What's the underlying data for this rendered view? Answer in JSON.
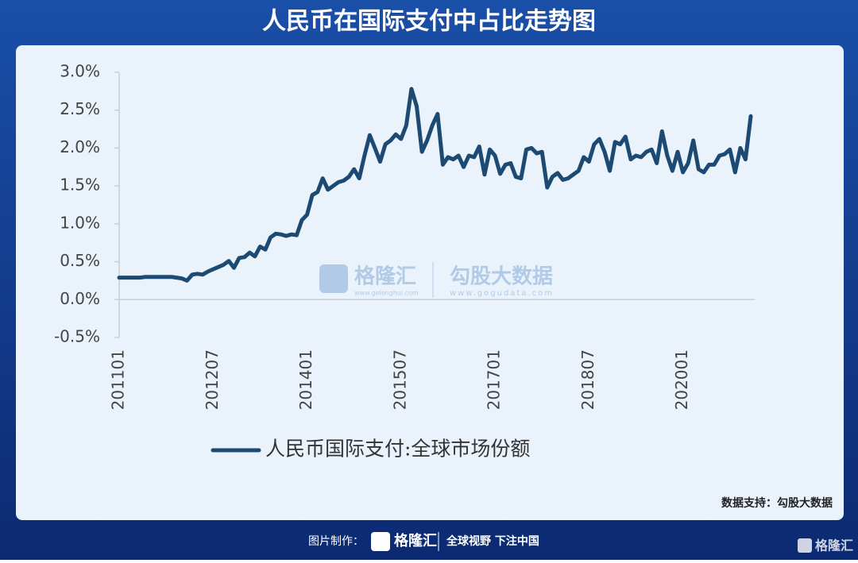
{
  "title": "人民币在国际支付中占比走势图",
  "chart_data": {
    "type": "line",
    "categories": [
      "201101",
      null,
      null,
      null,
      null,
      null,
      null,
      null,
      null,
      null,
      null,
      null,
      null,
      null,
      null,
      null,
      null,
      null,
      "201207",
      null,
      null,
      null,
      null,
      null,
      null,
      null,
      null,
      null,
      null,
      null,
      null,
      null,
      null,
      null,
      null,
      null,
      "201401",
      null,
      null,
      null,
      null,
      null,
      null,
      null,
      null,
      null,
      null,
      null,
      null,
      null,
      null,
      null,
      null,
      null,
      "201507",
      null,
      null,
      null,
      null,
      null,
      null,
      null,
      null,
      null,
      null,
      null,
      null,
      null,
      null,
      null,
      null,
      null,
      "201701",
      null,
      null,
      null,
      null,
      null,
      null,
      null,
      null,
      null,
      null,
      null,
      null,
      null,
      null,
      null,
      null,
      null,
      "201807",
      null,
      null,
      null,
      null,
      null,
      null,
      null,
      null,
      null,
      null,
      null,
      null,
      null,
      null,
      null,
      null,
      null,
      "202001",
      null,
      null,
      null,
      null,
      null,
      null,
      null,
      null,
      null,
      null,
      null,
      null,
      null
    ],
    "series": [
      {
        "name": "人民币国际支付:全球市场份额",
        "color": "#1d4a72",
        "values": [
          0.29,
          0.29,
          0.29,
          0.29,
          0.29,
          0.3,
          0.3,
          0.3,
          0.3,
          0.3,
          0.3,
          0.29,
          0.28,
          0.25,
          0.33,
          0.34,
          0.33,
          0.37,
          0.4,
          0.43,
          0.46,
          0.51,
          0.42,
          0.55,
          0.56,
          0.62,
          0.57,
          0.7,
          0.66,
          0.82,
          0.87,
          0.86,
          0.84,
          0.86,
          0.85,
          1.05,
          1.12,
          1.38,
          1.42,
          1.6,
          1.45,
          1.5,
          1.55,
          1.57,
          1.62,
          1.72,
          1.6,
          1.9,
          2.17,
          2.0,
          1.82,
          2.05,
          2.1,
          2.18,
          2.12,
          2.3,
          2.78,
          2.55,
          1.95,
          2.1,
          2.3,
          2.45,
          1.78,
          1.88,
          1.85,
          1.9,
          1.75,
          1.9,
          1.88,
          2.02,
          1.65,
          1.98,
          1.9,
          1.66,
          1.78,
          1.8,
          1.62,
          1.6,
          1.98,
          2.0,
          1.93,
          1.95,
          1.48,
          1.62,
          1.67,
          1.58,
          1.6,
          1.65,
          1.7,
          1.88,
          1.82,
          2.05,
          2.12,
          1.95,
          1.7,
          2.08,
          2.05,
          2.15,
          1.85,
          1.9,
          1.88,
          1.95,
          1.98,
          1.8,
          2.22,
          1.9,
          1.7,
          1.95,
          1.68,
          1.8,
          2.1,
          1.72,
          1.68,
          1.78,
          1.78,
          1.9,
          1.92,
          1.98,
          1.68,
          2.0,
          1.85,
          2.42
        ]
      }
    ],
    "ylim": [
      -0.5,
      3.0
    ],
    "yticks": [
      {
        "value": -0.5,
        "label": "-0.5%"
      },
      {
        "value": 0,
        "label": "0.0%"
      },
      {
        "value": 0.5,
        "label": "0.5%"
      },
      {
        "value": 1,
        "label": "1.0%"
      },
      {
        "value": 1.5,
        "label": "1.5%"
      },
      {
        "value": 2,
        "label": "2.0%"
      },
      {
        "value": 2.5,
        "label": "2.5%"
      },
      {
        "value": 3,
        "label": "3.0%"
      }
    ],
    "legend": "bottom"
  },
  "watermark": {
    "brand": "格隆汇",
    "brand_url": "www.gelonghui.com",
    "partner": "勾股大数据",
    "partner_url": "www.gogudata.com"
  },
  "source": "数据支持：勾股大数据",
  "footer": {
    "made_by": "图片制作：",
    "brand": "格隆汇",
    "slogan": "全球视野 下注中国",
    "corner": "格隆汇"
  }
}
